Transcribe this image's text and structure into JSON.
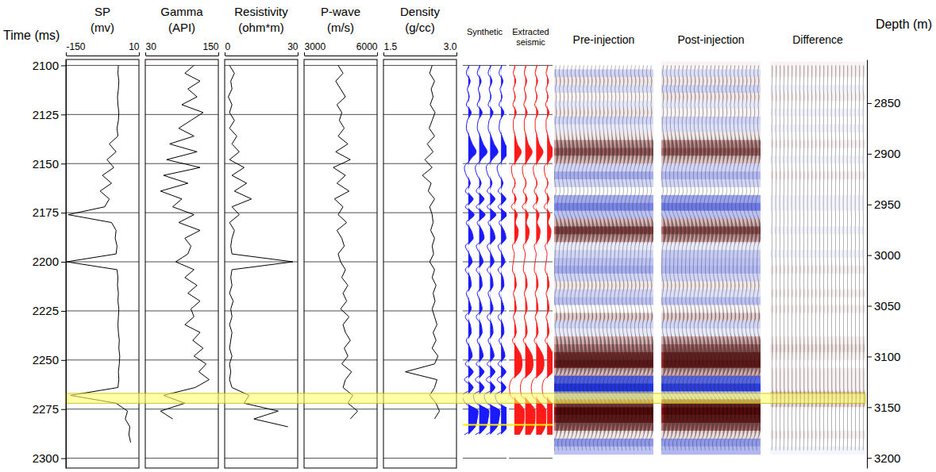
{
  "chart_data": {
    "type": "well_log_seismic",
    "grid": true,
    "time": [
      2100,
      2104,
      2108,
      2112,
      2116,
      2120,
      2124,
      2128,
      2132,
      2136,
      2140,
      2144,
      2148,
      2152,
      2156,
      2160,
      2164,
      2168,
      2172,
      2176,
      2180,
      2184,
      2188,
      2192,
      2196,
      2200,
      2204,
      2208,
      2212,
      2216,
      2220,
      2224,
      2228,
      2232,
      2236,
      2240,
      2244,
      2248,
      2252,
      2256,
      2260,
      2264,
      2268,
      2272,
      2276,
      2280,
      2284,
      2288,
      2292,
      2296
    ],
    "y_axis": {
      "title": "Time (ms)",
      "ylim": [
        2097,
        2305
      ],
      "yticks": [
        2100,
        2125,
        2150,
        2175,
        2200,
        2225,
        2250,
        2275,
        2300
      ]
    },
    "y2_axis": {
      "title": "Depth (m)",
      "y2lim": [
        2807,
        3210
      ],
      "y2ticks": [
        2850,
        2900,
        2950,
        3000,
        3050,
        3100,
        3150,
        3200
      ]
    },
    "logs": [
      {
        "name": "SP",
        "unit": "(mv)",
        "xlim": [
          -150,
          10
        ],
        "xticks": [
          -150,
          10
        ],
        "color": "#000000",
        "values": [
          -35,
          -36,
          -34,
          -35,
          -37,
          -36,
          -34,
          -35,
          -38,
          -36,
          -55,
          -40,
          -60,
          -45,
          -70,
          -50,
          -75,
          -55,
          -65,
          -145,
          -50,
          -40,
          -42,
          -38,
          -40,
          -148,
          -38,
          -36,
          -37,
          -35,
          -36,
          -34,
          -35,
          -36,
          -35,
          -33,
          -34,
          -32,
          -33,
          -35,
          -34,
          -36,
          -140,
          -40,
          -15,
          -20,
          -10,
          -12,
          -8,
          null
        ]
      },
      {
        "name": "Gamma",
        "unit": "(API)",
        "xlim": [
          30,
          150
        ],
        "xticks": [
          30,
          150
        ],
        "color": "#000000",
        "values": [
          110,
          95,
          120,
          100,
          115,
          90,
          125,
          105,
          85,
          110,
          70,
          115,
          65,
          120,
          60,
          100,
          55,
          90,
          75,
          110,
          85,
          120,
          95,
          105,
          100,
          80,
          110,
          95,
          115,
          100,
          120,
          105,
          110,
          95,
          120,
          108,
          125,
          110,
          130,
          118,
          135,
          112,
          60,
          95,
          55,
          75,
          null,
          null,
          null,
          null
        ]
      },
      {
        "name": "Resistivity",
        "unit": "(ohm*m)",
        "xlim": [
          0,
          30
        ],
        "xticks": [
          0,
          30
        ],
        "color": "#000000",
        "values": [
          2,
          4,
          2.5,
          3,
          1.5,
          3,
          2,
          4,
          2,
          5,
          3,
          6,
          2,
          8,
          3,
          9,
          4,
          11,
          3,
          6,
          2,
          4,
          3,
          2.5,
          3,
          28,
          3,
          2.5,
          3,
          2,
          3.5,
          2.5,
          3,
          2,
          3,
          2.5,
          2,
          3,
          2,
          2.5,
          2,
          3,
          10,
          8,
          22,
          12,
          26,
          null,
          null,
          null
        ]
      },
      {
        "name": "P-wave",
        "unit": "(m/s)",
        "xlim": [
          3000,
          6000
        ],
        "xticks": [
          3000,
          6000
        ],
        "color": "#000000",
        "values": [
          4400,
          4600,
          4300,
          4500,
          4700,
          4350,
          4550,
          4450,
          4650,
          4400,
          4800,
          4300,
          4900,
          4200,
          4700,
          4350,
          4850,
          4250,
          4600,
          4400,
          4750,
          4350,
          4550,
          4650,
          4400,
          4500,
          4700,
          4550,
          4800,
          4600,
          4750,
          4500,
          4850,
          4600,
          4700,
          4900,
          4650,
          4800,
          4550,
          4950,
          4700,
          4600,
          5000,
          4800,
          5200,
          4900,
          null,
          null,
          null,
          null
        ]
      },
      {
        "name": "Density",
        "unit": "(g/cc)",
        "xlim": [
          1.5,
          3.0
        ],
        "xticks": [
          1.5,
          {
            "value": 3,
            "label": "3.0"
          }
        ],
        "color": "#000000",
        "values": [
          2.5,
          2.45,
          2.55,
          2.48,
          2.52,
          2.46,
          2.56,
          2.5,
          2.44,
          2.55,
          2.4,
          2.52,
          2.35,
          2.5,
          2.3,
          2.48,
          2.42,
          2.55,
          2.45,
          2.5,
          2.52,
          2.47,
          2.55,
          2.5,
          2.53,
          2.45,
          2.55,
          2.5,
          2.58,
          2.52,
          2.56,
          2.5,
          2.55,
          2.6,
          2.52,
          2.58,
          2.5,
          2.62,
          2.55,
          1.95,
          2.6,
          2.55,
          2.45,
          2.58,
          2.65,
          2.55,
          null,
          null,
          null,
          null
        ]
      }
    ],
    "clim": [
      -1,
      1
    ],
    "seismic": [
      {
        "name": "Synthetic",
        "type": "wiggle",
        "color": "#1a1aff",
        "values": [
          0.1,
          -0.2,
          0.2,
          -0.1,
          0.1,
          -0.2,
          0.3,
          -0.1,
          -0.2,
          0.1,
          0.4,
          0.8,
          0.2,
          -0.4,
          -0.2,
          0.2,
          -0.3,
          0.5,
          -0.3,
          0.6,
          -0.2,
          0.3,
          0.5,
          -0.3,
          0.1,
          0.4,
          -0.3,
          0.2,
          0.3,
          -0.2,
          0.1,
          0.3,
          -0.3,
          0.2,
          0.3,
          -0.2,
          0.2,
          0.4,
          -0.3,
          0.5,
          -0.4,
          0.5,
          -0.6,
          -0.3,
          1.0,
          0.9,
          0.7,
          -0.4,
          null,
          null
        ]
      },
      {
        "name": "Extracted seismic",
        "type": "wiggle",
        "color": "#ff1a1a",
        "values": [
          0.1,
          -0.1,
          0.15,
          -0.1,
          0.1,
          -0.15,
          0.2,
          -0.1,
          -0.1,
          0.1,
          0.3,
          0.7,
          0.3,
          -0.3,
          -0.2,
          0.1,
          -0.2,
          0.2,
          -0.3,
          0.3,
          0.1,
          0.4,
          0.3,
          -0.2,
          0,
          -0.1,
          -0.2,
          0.1,
          0.2,
          -0.1,
          0.1,
          0.2,
          -0.1,
          0.1,
          0.2,
          -0.2,
          0.3,
          0.7,
          0.8,
          0.6,
          -0.3,
          -0.5,
          -0.4,
          0.5,
          1.0,
          1.0,
          0.9,
          0.5,
          null,
          null
        ]
      },
      {
        "name": "Pre-injection",
        "type": "density",
        "values": [
          0,
          -0.2,
          0.1,
          -0.15,
          0.05,
          -0.1,
          0.1,
          -0.2,
          -0.1,
          0.1,
          0.4,
          0.6,
          0.3,
          -0.2,
          -0.4,
          -0.2,
          0,
          -0.4,
          -0.6,
          -0.3,
          0.3,
          0.7,
          0.4,
          -0.1,
          -0.2,
          -0.3,
          -0.4,
          -0.2,
          0.1,
          -0.2,
          -0.3,
          0,
          0.2,
          -0.2,
          -0.1,
          0.3,
          0.5,
          0.8,
          0.9,
          0.3,
          -0.8,
          -1.0,
          -0.5,
          0.7,
          1.0,
          0.9,
          0.6,
          0.1,
          -0.5,
          -0.3
        ]
      },
      {
        "name": "Post-injection",
        "type": "density",
        "values": [
          0.05,
          -0.15,
          0.1,
          -0.2,
          0.1,
          -0.1,
          0.05,
          -0.2,
          -0.15,
          0.1,
          0.45,
          0.6,
          0.25,
          -0.2,
          -0.35,
          -0.2,
          0,
          -0.45,
          -0.65,
          -0.3,
          0.3,
          0.65,
          0.4,
          -0.1,
          -0.25,
          -0.3,
          -0.35,
          -0.2,
          0.1,
          -0.15,
          -0.3,
          0.05,
          0.2,
          -0.2,
          -0.1,
          0.35,
          0.6,
          0.85,
          0.9,
          0.35,
          -0.75,
          -0.95,
          -0.3,
          0.85,
          1.0,
          0.9,
          0.6,
          0.15,
          -0.5,
          -0.35
        ]
      },
      {
        "name": "Difference",
        "type": "density",
        "values": [
          0.05,
          0.05,
          0,
          -0.05,
          0.05,
          0,
          -0.05,
          0,
          -0.05,
          0,
          0.05,
          0,
          -0.05,
          0,
          0.05,
          0,
          0,
          -0.05,
          -0.05,
          0,
          0,
          -0.05,
          0,
          0,
          -0.05,
          0,
          0.05,
          0,
          0,
          0.05,
          0,
          0.05,
          0,
          0,
          0,
          0.05,
          0.1,
          0.05,
          0,
          0.05,
          0.05,
          0.05,
          0.2,
          0.15,
          0,
          0,
          0,
          0.05,
          0,
          -0.05
        ]
      }
    ],
    "annotations": [
      {
        "type": "band",
        "y": [
          2267,
          2272
        ],
        "color": "#ffff66"
      },
      {
        "type": "line",
        "y": 2283,
        "color": "#ffee00"
      }
    ]
  }
}
